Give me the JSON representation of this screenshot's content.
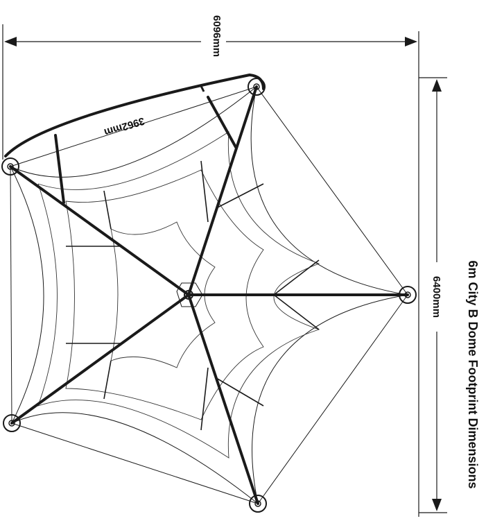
{
  "title": "6m City B Dome Footprint Dimensions",
  "dimensions": {
    "overall_width": "6096mm",
    "overall_depth": "6400mm",
    "arch_span": "3962mm"
  },
  "colors": {
    "line": "#1a1a1a",
    "background": "#ffffff"
  }
}
